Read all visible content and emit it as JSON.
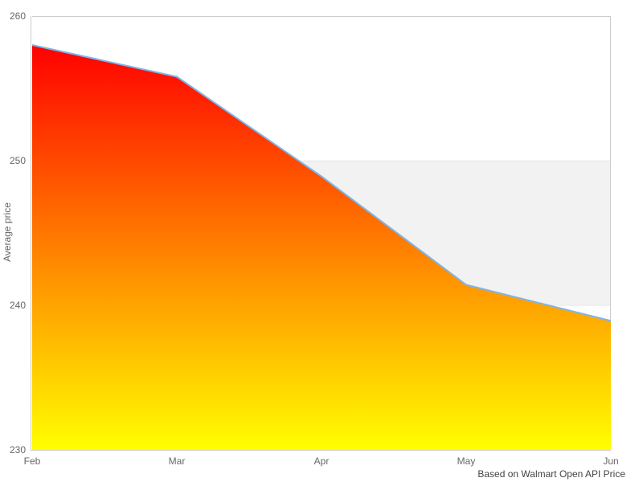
{
  "chart_data": {
    "type": "area",
    "categories": [
      "Feb",
      "Mar",
      "Apr",
      "May",
      "Jun"
    ],
    "series": [
      {
        "name": "Average price",
        "values": [
          258.0,
          255.8,
          248.9,
          241.4,
          238.9
        ]
      }
    ],
    "title": "",
    "xlabel": "",
    "ylabel": "Average price",
    "ylim": [
      230,
      260
    ],
    "yticks": [
      230,
      240,
      250,
      260
    ],
    "grid": true,
    "alternate_band": {
      "from": 240,
      "to": 250
    },
    "legend": "none",
    "credits": "Based on Walmart Open API Price",
    "colors": {
      "line": "#7cb5ec",
      "area_gradient_top": "#ff0000",
      "area_gradient_bottom": "#ffff00",
      "band": "#f2f2f2",
      "gridline": "#e6e6e6",
      "axis_line": "#cccccc",
      "tick_label": "#666666",
      "credits_text": "#444444",
      "background": "#ffffff"
    }
  }
}
